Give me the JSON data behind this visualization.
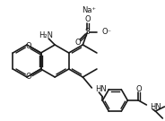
{
  "bg_color": "#ffffff",
  "line_color": "#1a1a1a",
  "lw": 1.2,
  "dlw": 1.0,
  "fs": 5.5,
  "na_label": "Na⁺",
  "so3_omin": "O⁻",
  "hn_label": "HN",
  "h2n_label": "H₂N",
  "o_label": "O",
  "hn2_label": "HN"
}
